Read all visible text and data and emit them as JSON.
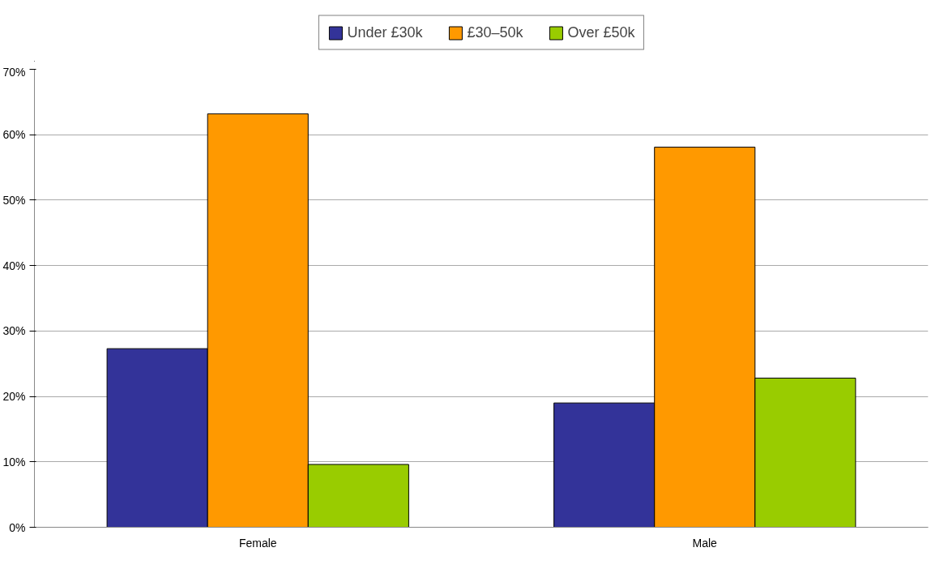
{
  "chart_data": {
    "type": "bar",
    "categories": [
      "Female",
      "Male"
    ],
    "series": [
      {
        "name": "Under £30k",
        "color": "#333399",
        "values": [
          27.3,
          19.0
        ]
      },
      {
        "name": "£30–50k",
        "color": "#ff9900",
        "values": [
          63.2,
          58.1
        ]
      },
      {
        "name": "Over £50k",
        "color": "#99cc00",
        "values": [
          9.6,
          22.8
        ]
      }
    ],
    "ylim": [
      0,
      70
    ],
    "yticks": [
      {
        "value": 0,
        "label": "0%"
      },
      {
        "value": 10,
        "label": "10%"
      },
      {
        "value": 20,
        "label": "20%"
      },
      {
        "value": 30,
        "label": "30%"
      },
      {
        "value": 40,
        "label": "40%"
      },
      {
        "value": 50,
        "label": "50%"
      },
      {
        "value": 60,
        "label": "60%"
      },
      {
        "value": 70,
        "label": "70%"
      }
    ],
    "grid": "y",
    "legend": "top"
  }
}
